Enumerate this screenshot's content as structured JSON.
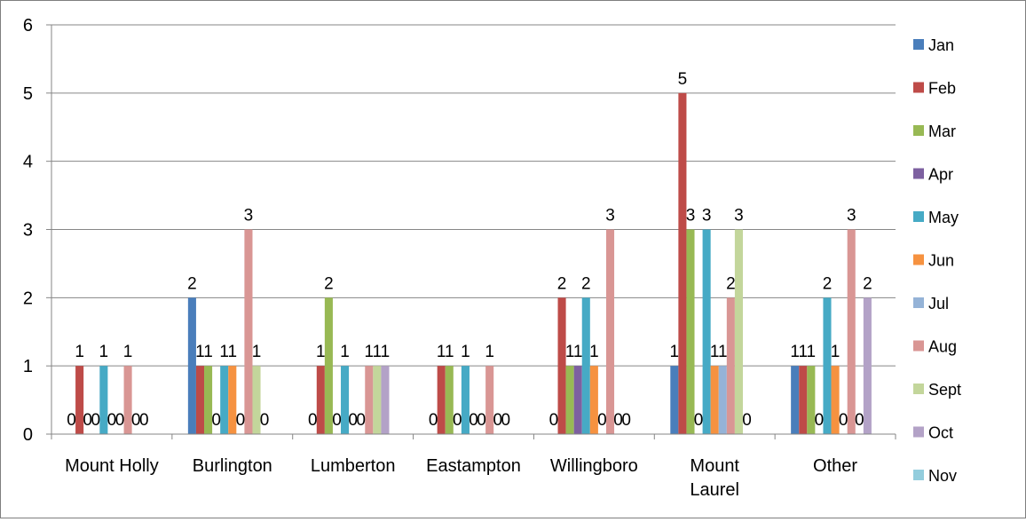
{
  "chart_data": {
    "type": "bar",
    "categories": [
      "Mount Holly",
      "Burlington",
      "Lumberton",
      "Eastampton",
      "Willingboro",
      "Mount Laurel",
      "Other"
    ],
    "category_lines": [
      [
        "Mount Holly"
      ],
      [
        "Burlington"
      ],
      [
        "Lumberton"
      ],
      [
        "Eastampton"
      ],
      [
        "Willingboro"
      ],
      [
        "Mount",
        "Laurel"
      ],
      [
        "Other"
      ]
    ],
    "y_ticks": [
      "0",
      "1",
      "2",
      "3",
      "4",
      "5",
      "6"
    ],
    "ylim": [
      0,
      6
    ],
    "grid": true,
    "legend_position": "right",
    "series": [
      {
        "name": "Jan",
        "color": "#4a7ebb",
        "values": [
          0,
          2,
          0,
          0,
          0,
          1,
          1
        ]
      },
      {
        "name": "Feb",
        "color": "#be4b48",
        "values": [
          1,
          1,
          1,
          1,
          2,
          5,
          1
        ]
      },
      {
        "name": "Mar",
        "color": "#98b954",
        "values": [
          0,
          1,
          2,
          1,
          1,
          3,
          1
        ]
      },
      {
        "name": "Apr",
        "color": "#7d60a0",
        "values": [
          0,
          0,
          0,
          0,
          1,
          0,
          0
        ]
      },
      {
        "name": "May",
        "color": "#46aac5",
        "values": [
          1,
          1,
          1,
          1,
          2,
          3,
          2
        ]
      },
      {
        "name": "Jun",
        "color": "#f69240",
        "values": [
          0,
          1,
          0,
          0,
          1,
          1,
          1
        ]
      },
      {
        "name": "Jul",
        "color": "#95b3d7",
        "values": [
          0,
          0,
          0,
          0,
          0,
          1,
          0
        ]
      },
      {
        "name": "Aug",
        "color": "#d99694",
        "values": [
          1,
          3,
          1,
          1,
          3,
          2,
          3
        ]
      },
      {
        "name": "Sept",
        "color": "#c3d69b",
        "values": [
          0,
          1,
          1,
          0,
          0,
          3,
          0
        ]
      },
      {
        "name": "Oct",
        "color": "#b3a2c7",
        "values": [
          0,
          0,
          1,
          0,
          0,
          0,
          2
        ]
      },
      {
        "name": "Nov",
        "color": "#93cddd",
        "values": [
          0,
          0,
          0,
          0,
          0,
          0,
          0
        ]
      }
    ],
    "data_labels": [
      [
        "0",
        "1",
        "0",
        "0",
        "1",
        "0",
        "0",
        "1",
        "0",
        "0",
        "0"
      ],
      [
        "2",
        "1",
        "1",
        "0",
        "1",
        "1",
        "0",
        "3",
        "1",
        "0",
        "0"
      ],
      [
        "0",
        "1",
        "2",
        "0",
        "1",
        "0",
        "0",
        "1",
        "1",
        "1",
        "0"
      ],
      [
        "0",
        "1",
        "1",
        "0",
        "1",
        "0",
        "0",
        "1",
        "0",
        "0",
        "0"
      ],
      [
        "0",
        "2",
        "1",
        "1",
        "2",
        "1",
        "0",
        "3",
        "0",
        "0",
        "0"
      ],
      [
        "1",
        "5",
        "3",
        "0",
        "3",
        "1",
        "1",
        "2",
        "3",
        "0",
        "0"
      ],
      [
        "1",
        "1",
        "1",
        "0",
        "2",
        "1",
        "0",
        "3",
        "0",
        "2",
        "0"
      ]
    ]
  }
}
